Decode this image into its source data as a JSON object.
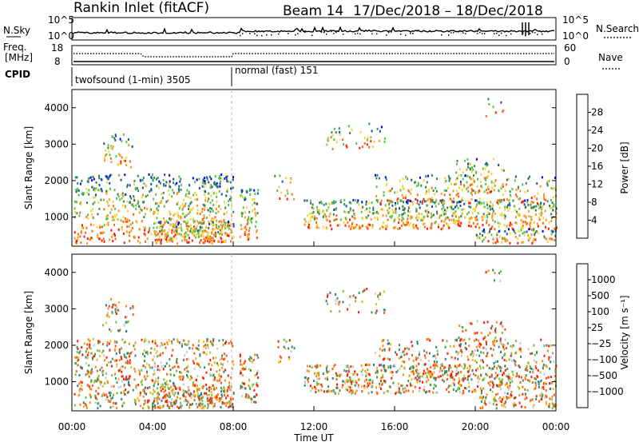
{
  "header": {
    "station": "Rankin Inlet (fitACF)",
    "beam": "Beam 14",
    "period": "17/Dec/2018 – 18/Dec/2018"
  },
  "top_panels": {
    "nsky_label": "N.Sky",
    "nsky_left_ticks": [
      "10^5",
      "10^0"
    ],
    "nsky_right_ticks": [
      "10^5",
      "10^0"
    ],
    "nsearch_label": "N.Search",
    "freq_label": "Freq.",
    "freq_unit": "[MHz]",
    "freq_ticks": [
      "18",
      "8"
    ],
    "nave_ticks": [
      "60",
      "0"
    ],
    "nave_label": "Nave",
    "cpid_label": "CPID",
    "cpid_segments": [
      {
        "label": "twofsound (1-min) 3505",
        "start_hour": 0
      },
      {
        "label": "normal (fast) 151",
        "start_hour": 8
      }
    ]
  },
  "axes": {
    "ylabel": "Slant Range [km]",
    "xlabel": "Time UT",
    "y_ticks": [
      "1000",
      "2000",
      "3000",
      "4000"
    ],
    "x_ticks": [
      "00:00",
      "04:00",
      "08:00",
      "12:00",
      "16:00",
      "20:00",
      "00:00"
    ]
  },
  "power_colorbar": {
    "label": "Power [dB]",
    "ticks": [
      "4",
      "8",
      "12",
      "16",
      "20",
      "24",
      "28"
    ],
    "colors": [
      "#0000ff",
      "#1f4fa5",
      "#2e8b57",
      "#5cc14a",
      "#f4d43a",
      "#f79a1e",
      "#ff6a12",
      "#ff1a00"
    ]
  },
  "velocity_colorbar": {
    "label": "Velocity [m s⁻¹]",
    "ticks": [
      "1000",
      "500",
      "100",
      "25",
      "−25",
      "−100",
      "−500",
      "−1000"
    ],
    "colors": [
      "#1a3fb4",
      "#2e7c8f",
      "#3b9a4e",
      "#6fc144",
      "#c8c8c8",
      "#f2b61c",
      "#f58a1a",
      "#f45a12",
      "#ff1a00"
    ]
  },
  "chart_data": {
    "type": "heatmap",
    "x_range_hours": [
      0,
      24
    ],
    "y_range_km": [
      200,
      4500
    ],
    "regions": [
      {
        "t0": 0.1,
        "t1": 8.0,
        "r0": 300,
        "r1": 2200,
        "density": 0.55
      },
      {
        "t0": 4.0,
        "t1": 8.0,
        "r0": 300,
        "r1": 900,
        "density": 0.8
      },
      {
        "t0": 1.5,
        "t1": 3.0,
        "r0": 2400,
        "r1": 3300,
        "density": 0.4
      },
      {
        "t0": 8.3,
        "t1": 9.2,
        "r0": 400,
        "r1": 1800,
        "density": 0.7
      },
      {
        "t0": 10.0,
        "t1": 11.0,
        "r0": 1500,
        "r1": 2200,
        "density": 0.3
      },
      {
        "t0": 11.5,
        "t1": 24.0,
        "r0": 700,
        "r1": 1500,
        "density": 0.75
      },
      {
        "t0": 15.0,
        "t1": 24.0,
        "r0": 1400,
        "r1": 2200,
        "density": 0.35
      },
      {
        "t0": 20.0,
        "t1": 24.0,
        "r0": 300,
        "r1": 700,
        "density": 0.7
      },
      {
        "t0": 12.5,
        "t1": 15.5,
        "r0": 2900,
        "r1": 3600,
        "density": 0.25
      },
      {
        "t0": 19.0,
        "t1": 21.5,
        "r0": 1700,
        "r1": 2700,
        "density": 0.35
      },
      {
        "t0": 20.5,
        "t1": 21.5,
        "r0": 3800,
        "r1": 4300,
        "density": 0.2
      }
    ]
  }
}
